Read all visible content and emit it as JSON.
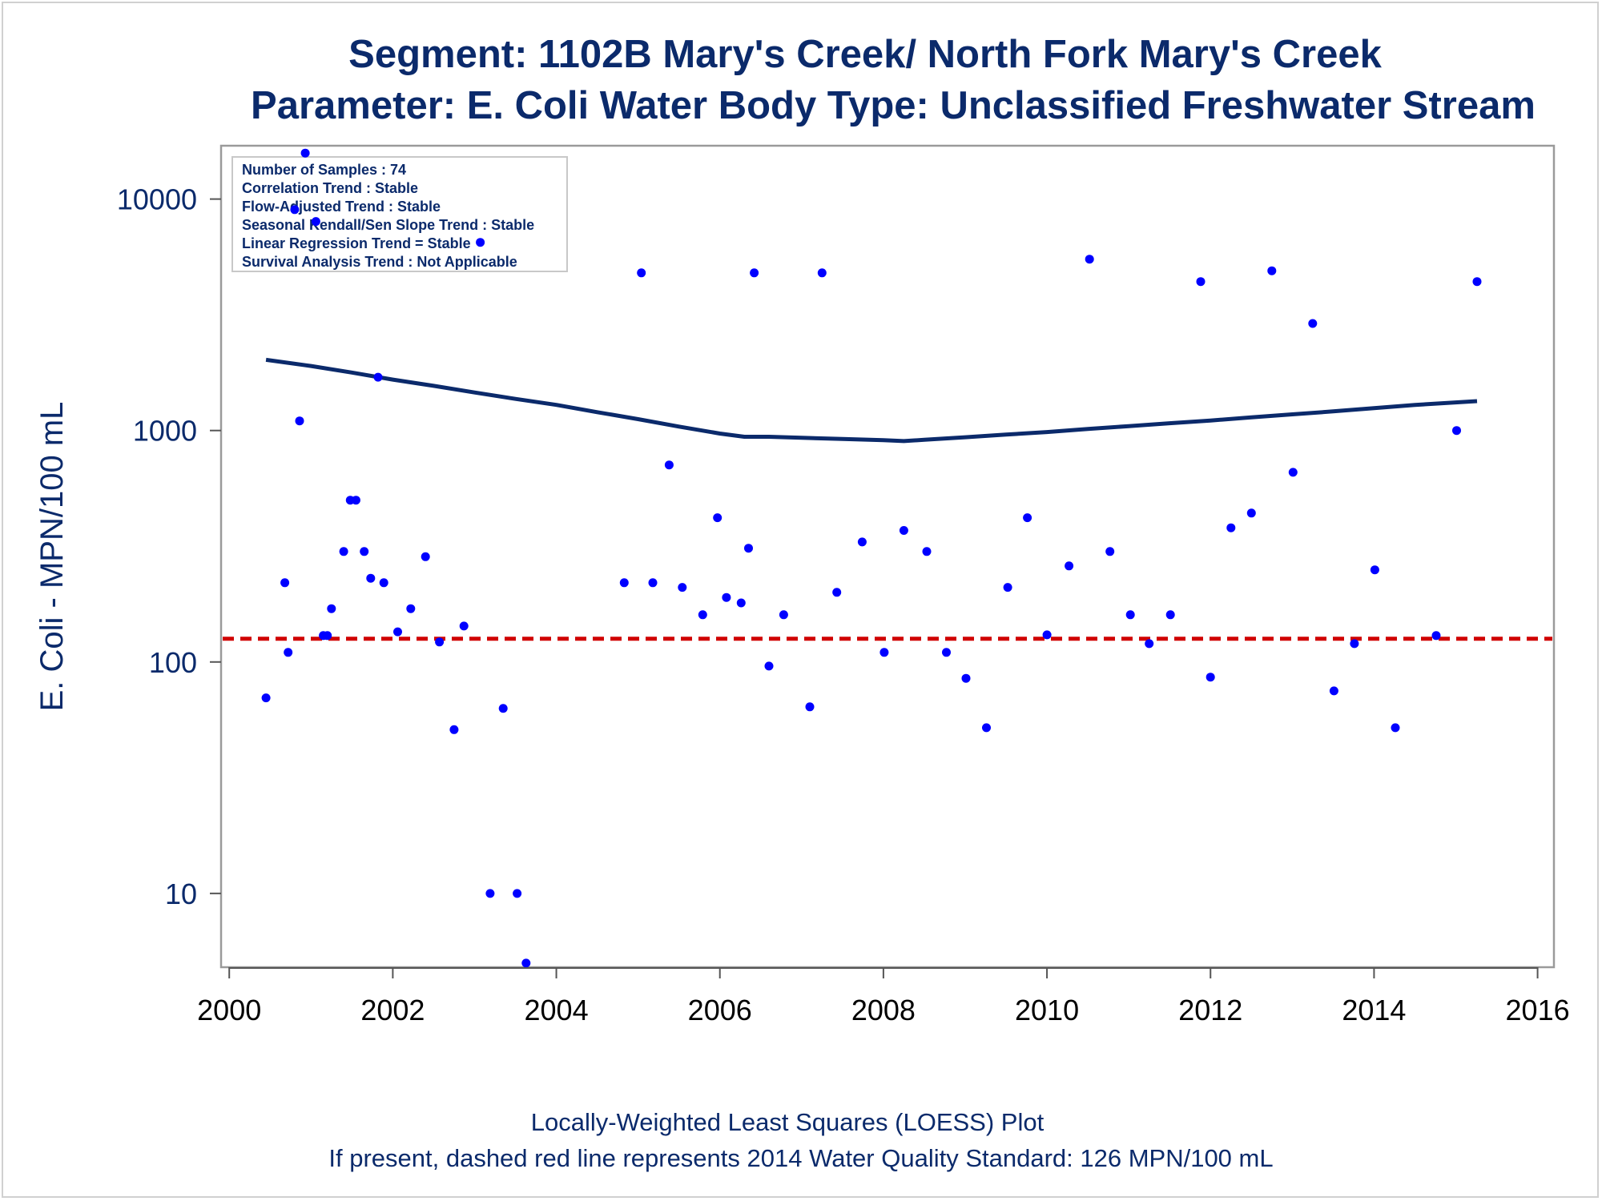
{
  "chart_data": {
    "type": "scatter",
    "title": "Segment: 1102B  Mary's Creek/ North Fork Mary's Creek",
    "subtitle": "Parameter: E. Coli   Water Body Type: Unclassified Freshwater Stream",
    "ylabel": "E. Coli - MPN/100 mL",
    "xlabel": "",
    "footnotes": [
      "Locally-Weighted Least Squares (LOESS) Plot",
      "If present, dashed red line represents 2014 Water Quality Standard: 126 MPN/100 mL"
    ],
    "y_scale": "log",
    "xlim": [
      1999.9,
      2016.2
    ],
    "ylim": [
      4.8,
      17000
    ],
    "x_ticks": [
      "2000",
      "2002",
      "2004",
      "2006",
      "2008",
      "2010",
      "2012",
      "2014",
      "2016"
    ],
    "y_ticks": [
      "10",
      "100",
      "1000",
      "10000"
    ],
    "grid": false,
    "stats_box": {
      "placement": "top-left",
      "lines": [
        "Number of Samples : 74",
        "Correlation Trend : Stable",
        "Flow-Adjusted Trend : Stable",
        "Seasonal Kendall/Sen Slope Trend : Stable",
        "Linear Regression Trend = Stable",
        "Survival Analysis Trend : Not Applicable"
      ]
    },
    "reference_line": {
      "y": 126,
      "color": "#d00000",
      "style": "dashed"
    },
    "colors": {
      "points": "#0000ff",
      "loess": "#0b2a6b",
      "text": "#0b2a6b"
    },
    "series": [
      {
        "kind": "points",
        "points": [
          [
            2000.45,
            70
          ],
          [
            2000.68,
            220
          ],
          [
            2000.72,
            110
          ],
          [
            2000.8,
            9000
          ],
          [
            2000.86,
            1100
          ],
          [
            2000.93,
            15800
          ],
          [
            2001.06,
            8000
          ],
          [
            2001.15,
            130
          ],
          [
            2001.2,
            130
          ],
          [
            2001.25,
            170
          ],
          [
            2001.4,
            300
          ],
          [
            2001.48,
            500
          ],
          [
            2001.55,
            500
          ],
          [
            2001.65,
            300
          ],
          [
            2001.73,
            230
          ],
          [
            2001.82,
            1700
          ],
          [
            2001.89,
            220
          ],
          [
            2002.06,
            135
          ],
          [
            2002.22,
            170
          ],
          [
            2002.4,
            285
          ],
          [
            2002.57,
            122
          ],
          [
            2002.75,
            51
          ],
          [
            2002.87,
            143
          ],
          [
            2003.07,
            6500
          ],
          [
            2003.19,
            10
          ],
          [
            2003.35,
            63
          ],
          [
            2003.52,
            10
          ],
          [
            2003.63,
            5
          ],
          [
            2004.83,
            220
          ],
          [
            2005.04,
            4800
          ],
          [
            2005.18,
            220
          ],
          [
            2005.38,
            710
          ],
          [
            2005.54,
            210
          ],
          [
            2005.79,
            160
          ],
          [
            2005.97,
            420
          ],
          [
            2006.08,
            190
          ],
          [
            2006.26,
            180
          ],
          [
            2006.35,
            310
          ],
          [
            2006.42,
            4800
          ],
          [
            2006.6,
            96
          ],
          [
            2006.78,
            160
          ],
          [
            2007.1,
            64
          ],
          [
            2007.25,
            4800
          ],
          [
            2007.43,
            200
          ],
          [
            2007.74,
            330
          ],
          [
            2008.01,
            110
          ],
          [
            2008.25,
            370
          ],
          [
            2008.53,
            300
          ],
          [
            2008.77,
            110
          ],
          [
            2009.01,
            85
          ],
          [
            2009.26,
            52
          ],
          [
            2009.52,
            210
          ],
          [
            2009.76,
            420
          ],
          [
            2010.0,
            131
          ],
          [
            2010.27,
            260
          ],
          [
            2010.52,
            5500
          ],
          [
            2010.77,
            300
          ],
          [
            2011.02,
            160
          ],
          [
            2011.25,
            120
          ],
          [
            2011.51,
            160
          ],
          [
            2011.88,
            4400
          ],
          [
            2012.0,
            86
          ],
          [
            2012.25,
            380
          ],
          [
            2012.5,
            440
          ],
          [
            2012.75,
            4900
          ],
          [
            2013.01,
            660
          ],
          [
            2013.25,
            2900
          ],
          [
            2013.51,
            75
          ],
          [
            2013.76,
            120
          ],
          [
            2014.01,
            250
          ],
          [
            2014.26,
            52
          ],
          [
            2014.76,
            130
          ],
          [
            2015.01,
            1000
          ],
          [
            2015.26,
            4400
          ]
        ]
      },
      {
        "kind": "loess",
        "points": [
          [
            2000.45,
            2020
          ],
          [
            2001.0,
            1900
          ],
          [
            2001.5,
            1780
          ],
          [
            2002.0,
            1660
          ],
          [
            2002.5,
            1560
          ],
          [
            2003.0,
            1460
          ],
          [
            2003.5,
            1370
          ],
          [
            2004.0,
            1290
          ],
          [
            2004.5,
            1200
          ],
          [
            2005.0,
            1120
          ],
          [
            2005.5,
            1040
          ],
          [
            2006.0,
            970
          ],
          [
            2006.3,
            940
          ],
          [
            2006.6,
            940
          ],
          [
            2007.0,
            930
          ],
          [
            2007.5,
            920
          ],
          [
            2008.0,
            908
          ],
          [
            2008.25,
            900
          ],
          [
            2008.5,
            912
          ],
          [
            2009.0,
            935
          ],
          [
            2009.5,
            960
          ],
          [
            2010.0,
            985
          ],
          [
            2010.5,
            1015
          ],
          [
            2011.0,
            1045
          ],
          [
            2011.5,
            1075
          ],
          [
            2012.0,
            1105
          ],
          [
            2012.5,
            1140
          ],
          [
            2013.0,
            1175
          ],
          [
            2013.5,
            1210
          ],
          [
            2014.0,
            1250
          ],
          [
            2014.5,
            1290
          ],
          [
            2015.26,
            1340
          ]
        ]
      }
    ]
  }
}
